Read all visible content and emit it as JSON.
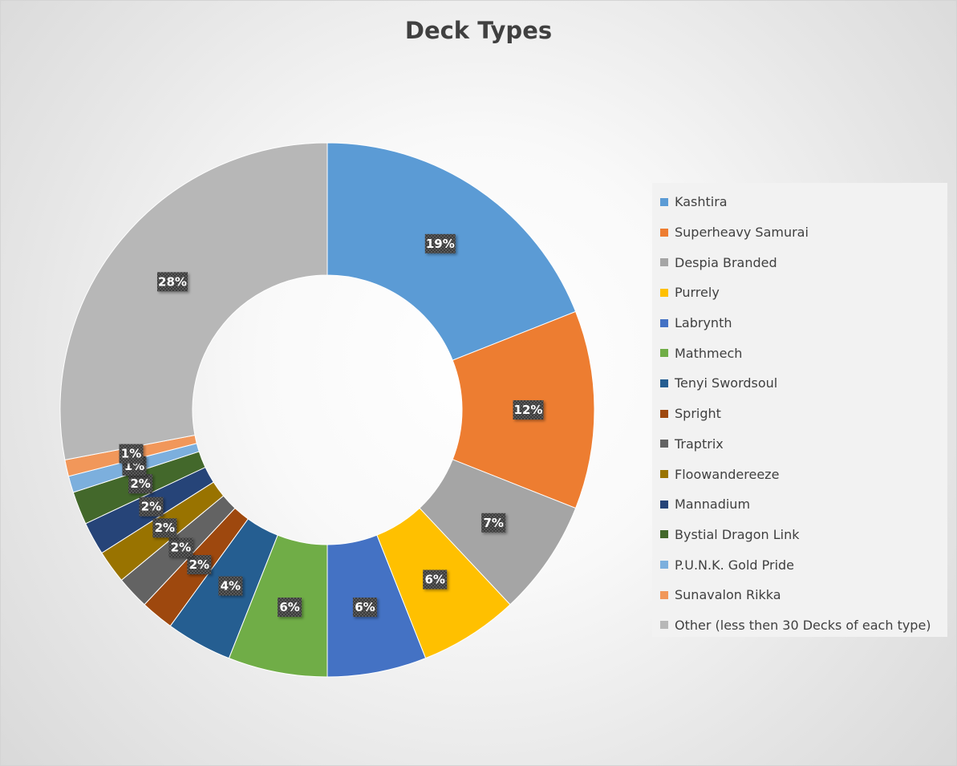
{
  "chart_data": {
    "type": "pie",
    "donut": true,
    "title": "Deck Types",
    "legend_position": "right",
    "label_format": "percent",
    "series": [
      {
        "name": "Kashtira",
        "value": 19,
        "label": "19%",
        "color": "#5b9bd5"
      },
      {
        "name": "Superheavy Samurai",
        "value": 12,
        "label": "12%",
        "color": "#ed7d31"
      },
      {
        "name": "Despia Branded",
        "value": 7,
        "label": "7%",
        "color": "#a5a5a5"
      },
      {
        "name": "Purrely",
        "value": 6,
        "label": "6%",
        "color": "#ffc000"
      },
      {
        "name": "Labrynth",
        "value": 6,
        "label": "6%",
        "color": "#4472c4"
      },
      {
        "name": "Mathmech",
        "value": 6,
        "label": "6%",
        "color": "#70ad47"
      },
      {
        "name": "Tenyi Swordsoul",
        "value": 4,
        "label": "4%",
        "color": "#255e91"
      },
      {
        "name": "Spright",
        "value": 2,
        "label": "2%",
        "color": "#9e480e"
      },
      {
        "name": "Traptrix",
        "value": 2,
        "label": "2%",
        "color": "#636363"
      },
      {
        "name": "Floowandereeze",
        "value": 2,
        "label": "2%",
        "color": "#997300"
      },
      {
        "name": "Mannadium",
        "value": 2,
        "label": "2%",
        "color": "#264478"
      },
      {
        "name": "Bystial Dragon Link",
        "value": 2,
        "label": "2%",
        "color": "#43682b"
      },
      {
        "name": "P.U.N.K. Gold Pride",
        "value": 1,
        "label": "1%",
        "color": "#7cafdd"
      },
      {
        "name": "Sunavalon Rikka",
        "value": 1,
        "label": "1%",
        "color": "#f1975a"
      },
      {
        "name": "Other (less then 30 Decks of each type)",
        "value": 28,
        "label": "28%",
        "color": "#b7b7b7"
      }
    ]
  }
}
